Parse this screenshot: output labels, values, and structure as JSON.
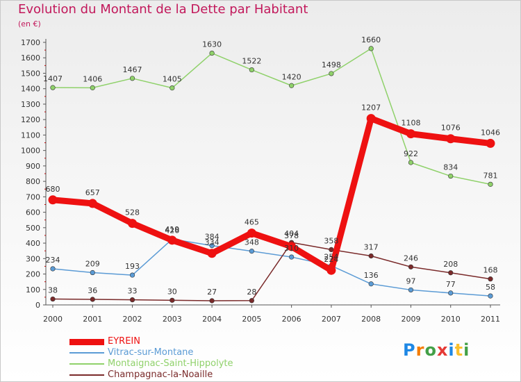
{
  "header": {
    "title": "Evolution du Montant de la Dette par Habitant",
    "unit": "(en €)"
  },
  "logo": {
    "text": "Proxiti",
    "letters": [
      "P",
      "r",
      "o",
      "x",
      "i",
      "t",
      "i"
    ],
    "colors": [
      "#1e88e5",
      "#f57c00",
      "#43a047",
      "#e53935",
      "#1e88e5",
      "#fbc02d",
      "#43a047"
    ]
  },
  "chart_data": {
    "type": "line",
    "title": "Evolution du Montant de la Dette par Habitant",
    "subtitle": "(en €)",
    "xlabel": "",
    "ylabel": "",
    "x": [
      "2000",
      "2001",
      "2002",
      "2003",
      "2004",
      "2005",
      "2006",
      "2007",
      "2008",
      "2009",
      "2010",
      "2011"
    ],
    "ylim": [
      0,
      1700
    ],
    "yticks": [
      0,
      100,
      200,
      300,
      400,
      500,
      600,
      700,
      800,
      900,
      1000,
      1100,
      1200,
      1300,
      1400,
      1500,
      1600,
      1700
    ],
    "grid": false,
    "legend_position": "bottom-left",
    "series": [
      {
        "name": "EYREIN",
        "color": "#ee1111",
        "values": [
          680,
          657,
          528,
          419,
          334,
          465,
          378,
          224,
          1207,
          1108,
          1076,
          1046
        ],
        "labels": [
          "680",
          "657",
          "528",
          "419",
          "334",
          "465",
          "378",
          "224",
          "1207",
          "1108",
          "1076",
          "1046"
        ],
        "thick": true
      },
      {
        "name": "Vitrac-sur-Montane",
        "color": "#5b9bd5",
        "values": [
          234,
          209,
          193,
          426,
          384,
          348,
          310,
          254,
          136,
          97,
          77,
          58
        ],
        "labels": [
          "234",
          "209",
          "193",
          "426",
          "384",
          "348",
          "310",
          "254",
          "136",
          "97",
          "77",
          "58"
        ],
        "thick": false
      },
      {
        "name": "Montaignac-Saint-Hippolyte",
        "color": "#8fd16a",
        "values": [
          1407,
          1406,
          1467,
          1405,
          1630,
          1522,
          1420,
          1498,
          1660,
          922,
          834,
          781
        ],
        "labels": [
          "1407",
          "1406",
          "1467",
          "1405",
          "1630",
          "1522",
          "1420",
          "1498",
          "1660",
          "922",
          "834",
          "781"
        ],
        "thick": false
      },
      {
        "name": "Champagnac-la-Noaille",
        "color": "#7a2a2a",
        "values": [
          38,
          36,
          33,
          30,
          27,
          28,
          404,
          358,
          317,
          246,
          208,
          168
        ],
        "labels": [
          "38",
          "36",
          "33",
          "30",
          "27",
          "28",
          "404",
          "358",
          "317",
          "246",
          "208",
          "168"
        ],
        "thick": false
      }
    ]
  }
}
